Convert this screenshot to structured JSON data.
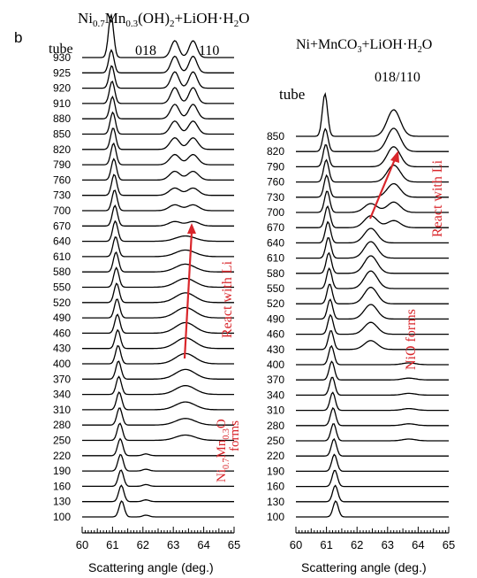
{
  "panel_letter": "b",
  "chart_data": [
    {
      "type": "line",
      "panel": "left",
      "title_parts": {
        "a": "Ni",
        "a_sub": "0.7",
        "b": "Mn",
        "b_sub": "0.3",
        "c": "(OH)",
        "c_sub": "2",
        "d": "+LiOH·H",
        "d_sub": "2",
        "e": "O"
      },
      "xlabel": "Scattering angle (deg.)",
      "xlim": [
        60,
        65
      ],
      "xticks": [
        "60",
        "61",
        "62",
        "63",
        "64",
        "65"
      ],
      "series_label_key": "temperature",
      "temperatures": [
        "100",
        "130",
        "160",
        "190",
        "220",
        "250",
        "280",
        "310",
        "340",
        "370",
        "400",
        "430",
        "460",
        "490",
        "520",
        "550",
        "580",
        "610",
        "640",
        "670",
        "700",
        "730",
        "760",
        "790",
        "820",
        "850",
        "880",
        "910",
        "920",
        "925",
        "930"
      ],
      "annotations": {
        "tube": "tube",
        "peak_018": "018",
        "peak_110": "110",
        "react": "React with Li",
        "forms_parts": {
          "a": "Ni",
          "a_sub": "0.7",
          "b": "Mn",
          "b_sub": "0.3",
          "c": "O",
          "d": "forms"
        }
      }
    },
    {
      "type": "line",
      "panel": "right",
      "title_parts": {
        "a": "Ni+MnCO",
        "a_sub": "3",
        "b": "+LiOH·H",
        "b_sub": "2",
        "c": "O"
      },
      "xlabel": "Scattering angle (deg.)",
      "xlim": [
        60,
        65
      ],
      "xticks": [
        "60",
        "61",
        "62",
        "63",
        "64",
        "65"
      ],
      "temperatures": [
        "100",
        "130",
        "160",
        "190",
        "220",
        "250",
        "280",
        "310",
        "340",
        "370",
        "400",
        "430",
        "460",
        "490",
        "520",
        "550",
        "580",
        "610",
        "640",
        "670",
        "700",
        "730",
        "760",
        "790",
        "820",
        "850"
      ],
      "annotations": {
        "tube": "tube",
        "peak_018_110": "018/110",
        "react": "React with Li",
        "nio": "NiO forms"
      }
    }
  ]
}
